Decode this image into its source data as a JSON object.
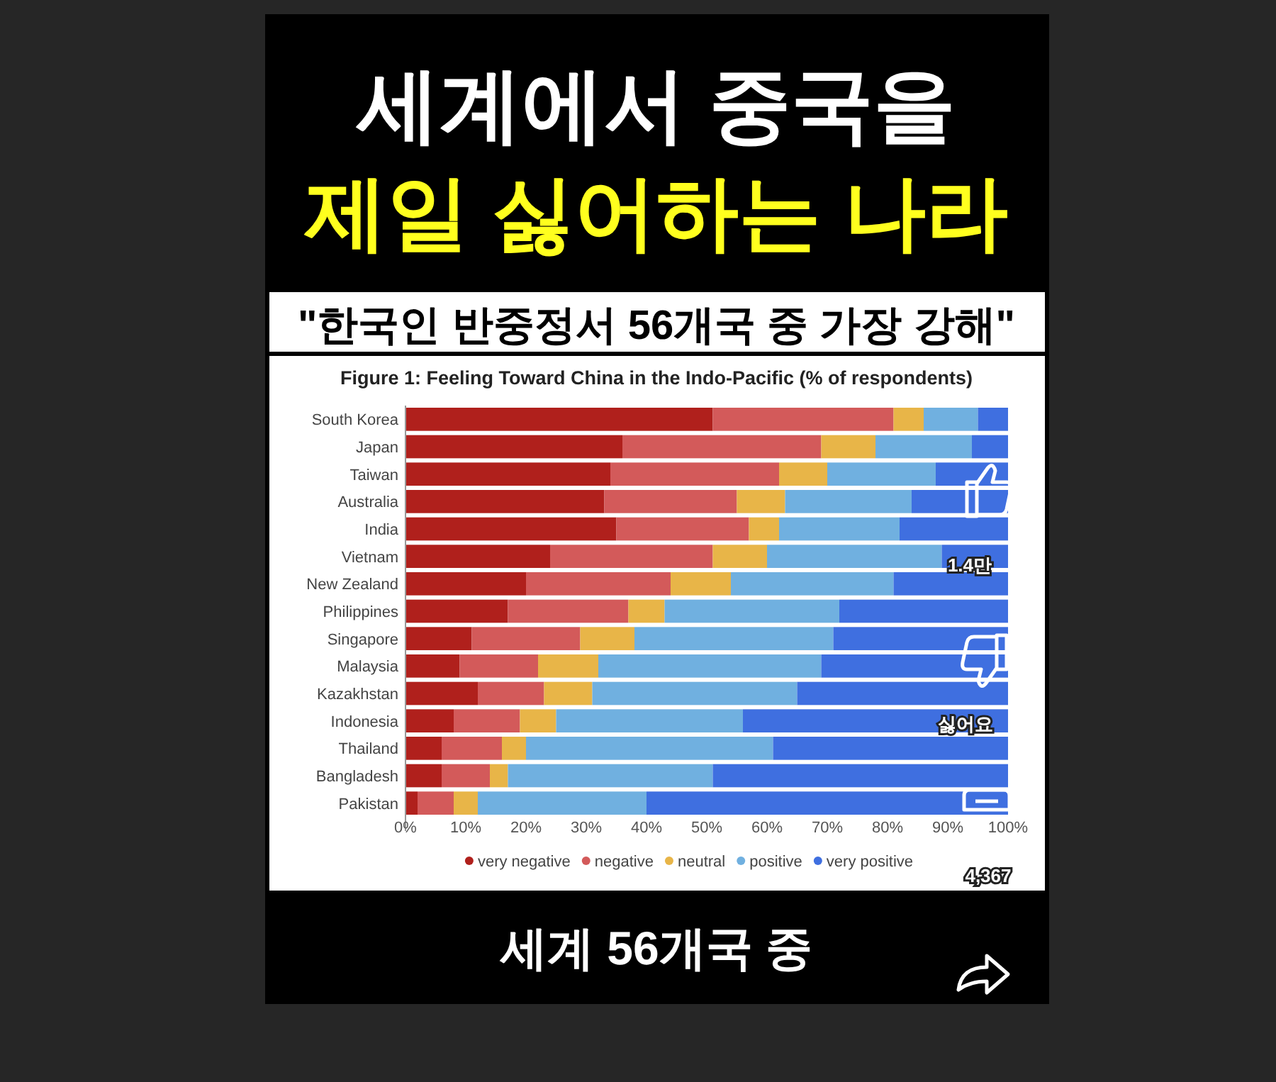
{
  "chart_data": {
    "type": "bar",
    "orientation": "horizontal",
    "stacked": true,
    "title": "Figure 1: Feeling Toward China in the Indo-Pacific (% of respondents)",
    "subtitle": "\"한국인 반중정서 56개국 중 가장 강해\"",
    "annotations": [
      "세계에서 중국을",
      "제일 싫어하는 나라",
      "세계 56개국 중",
      "1.4만",
      "싫어요",
      "4,367"
    ],
    "categories": [
      "South Korea",
      "Japan",
      "Taiwan",
      "Australia",
      "India",
      "Vietnam",
      "New Zealand",
      "Philippines",
      "Singapore",
      "Malaysia",
      "Kazakhstan",
      "Indonesia",
      "Thailand",
      "Bangladesh",
      "Pakistan"
    ],
    "series": [
      {
        "name": "very negative",
        "color": "#b0201c",
        "values": [
          51,
          36,
          34,
          33,
          35,
          24,
          20,
          17,
          11,
          9,
          12,
          8,
          6,
          6,
          2
        ]
      },
      {
        "name": "negative",
        "color": "#d35a5a",
        "values": [
          30,
          33,
          28,
          22,
          22,
          27,
          24,
          20,
          18,
          13,
          11,
          11,
          10,
          8,
          6
        ]
      },
      {
        "name": "neutral",
        "color": "#e8b548",
        "values": [
          5,
          9,
          8,
          8,
          5,
          9,
          10,
          6,
          9,
          10,
          8,
          6,
          4,
          3,
          4
        ]
      },
      {
        "name": "positive",
        "color": "#70b0e0",
        "values": [
          9,
          16,
          18,
          21,
          20,
          29,
          27,
          29,
          33,
          37,
          34,
          31,
          41,
          34,
          28
        ]
      },
      {
        "name": "very positive",
        "color": "#3f6fe0",
        "values": [
          5,
          6,
          12,
          16,
          18,
          11,
          19,
          28,
          29,
          31,
          35,
          44,
          39,
          49,
          60
        ]
      }
    ],
    "xlim": [
      0,
      100
    ],
    "xticks": [
      {
        "value": 0,
        "label": "0%"
      },
      {
        "value": 10,
        "label": "10%"
      },
      {
        "value": 20,
        "label": "20%"
      },
      {
        "value": 30,
        "label": "30%"
      },
      {
        "value": 40,
        "label": "40%"
      },
      {
        "value": 50,
        "label": "50%"
      },
      {
        "value": 60,
        "label": "60%"
      },
      {
        "value": 70,
        "label": "70%"
      },
      {
        "value": 80,
        "label": "80%"
      },
      {
        "value": 90,
        "label": "90%"
      },
      {
        "value": 100,
        "label": "100%"
      }
    ],
    "legend": "bottom"
  }
}
